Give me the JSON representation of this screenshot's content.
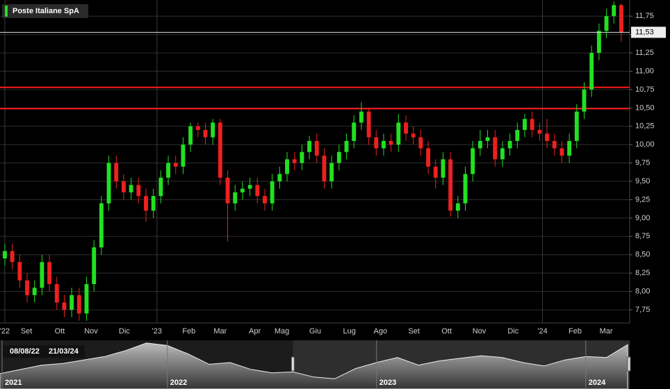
{
  "chart_data": [
    {
      "type": "candlestick",
      "title": "Poste Italiane SpA",
      "up_color": "#22e022",
      "down_color": "#ee2020",
      "grid": true,
      "x": [
        0,
        0.23,
        0.46,
        0.69,
        0.92,
        1.15,
        1.38,
        1.61,
        1.84,
        2.07,
        2.3,
        2.53,
        2.76,
        2.99,
        3.22,
        3.45,
        3.68,
        3.91,
        4.14,
        4.37,
        4.6,
        4.83,
        5.06,
        5.29,
        5.52,
        5.75,
        5.98,
        6.21,
        6.44,
        6.67,
        6.9,
        7.13,
        7.36,
        7.59,
        7.82,
        8.05,
        8.28,
        8.51,
        8.74,
        8.97,
        9.2,
        9.43,
        9.66,
        9.89,
        10.12,
        10.35,
        10.58,
        10.81,
        11.04,
        11.27,
        11.5,
        11.73,
        11.96,
        12.19,
        12.42,
        12.65,
        12.88,
        13.11,
        13.34,
        13.57,
        13.8,
        14.03,
        14.26,
        14.49,
        14.72,
        14.95,
        15.18,
        15.41,
        15.64,
        15.87,
        16.1,
        16.33,
        16.56,
        16.79,
        17.02,
        17.25,
        17.48,
        17.71,
        17.94,
        18.17,
        18.4,
        18.63,
        18.86,
        19.09
      ],
      "open": [
        8.45,
        8.55,
        8.4,
        8.15,
        7.95,
        8.05,
        8.4,
        8.1,
        7.85,
        7.75,
        7.95,
        7.7,
        8.1,
        8.6,
        9.2,
        9.75,
        9.5,
        9.35,
        9.45,
        9.3,
        9.1,
        9.3,
        9.55,
        9.75,
        9.7,
        10.0,
        10.25,
        10.2,
        10.1,
        10.3,
        9.55,
        9.2,
        9.35,
        9.4,
        9.45,
        9.3,
        9.2,
        9.5,
        9.6,
        9.8,
        9.75,
        9.9,
        10.05,
        9.85,
        9.5,
        9.75,
        9.9,
        10.05,
        10.3,
        10.45,
        10.1,
        9.95,
        10.05,
        10.0,
        10.3,
        10.15,
        10.1,
        9.95,
        9.7,
        9.55,
        9.8,
        9.1,
        9.2,
        9.6,
        9.95,
        10.05,
        10.1,
        9.8,
        9.95,
        10.05,
        10.2,
        10.35,
        10.2,
        10.15,
        10.05,
        9.95,
        9.85,
        10.05,
        10.45,
        10.75,
        11.25,
        11.55,
        11.75,
        11.9
      ],
      "high": [
        8.65,
        8.65,
        8.5,
        8.25,
        8.15,
        8.5,
        8.5,
        8.2,
        7.95,
        8.05,
        8.05,
        8.2,
        8.7,
        9.3,
        9.85,
        9.85,
        9.6,
        9.55,
        9.55,
        9.4,
        9.4,
        9.65,
        9.85,
        9.85,
        10.1,
        10.3,
        10.3,
        10.3,
        10.35,
        10.35,
        9.65,
        9.45,
        9.5,
        9.55,
        9.55,
        9.4,
        9.6,
        9.7,
        9.9,
        9.9,
        10.0,
        10.12,
        10.15,
        9.95,
        9.85,
        10.0,
        10.15,
        10.4,
        10.58,
        10.5,
        10.2,
        10.15,
        10.15,
        10.42,
        10.4,
        10.25,
        10.2,
        10.05,
        9.8,
        9.9,
        9.9,
        9.3,
        9.7,
        10.05,
        10.2,
        10.2,
        10.2,
        10.05,
        10.15,
        10.3,
        10.42,
        10.45,
        10.3,
        10.35,
        10.15,
        10.05,
        10.15,
        10.55,
        10.85,
        11.35,
        11.65,
        11.85,
        11.95,
        11.92
      ],
      "low": [
        8.35,
        8.3,
        8.05,
        7.85,
        7.85,
        7.95,
        8.0,
        7.75,
        7.65,
        7.65,
        7.6,
        7.6,
        8.0,
        8.5,
        9.1,
        9.4,
        9.25,
        9.25,
        9.2,
        8.95,
        9.0,
        9.2,
        9.45,
        9.6,
        9.6,
        9.9,
        10.1,
        10.0,
        10.0,
        9.45,
        8.68,
        9.1,
        9.25,
        9.3,
        9.2,
        9.1,
        9.1,
        9.4,
        9.5,
        9.65,
        9.65,
        9.8,
        9.75,
        9.4,
        9.4,
        9.65,
        9.8,
        9.95,
        10.2,
        10.0,
        9.85,
        9.85,
        9.9,
        9.9,
        10.05,
        10.0,
        9.85,
        9.6,
        9.4,
        9.45,
        9.02,
        9.0,
        9.1,
        9.5,
        9.85,
        9.95,
        9.7,
        9.7,
        9.85,
        9.95,
        10.1,
        10.1,
        10.05,
        9.95,
        9.85,
        9.75,
        9.75,
        9.95,
        10.35,
        10.65,
        11.15,
        11.45,
        11.65,
        11.4
      ],
      "close": [
        8.55,
        8.4,
        8.15,
        7.95,
        8.05,
        8.4,
        8.1,
        7.85,
        7.75,
        7.95,
        7.7,
        8.1,
        8.6,
        9.2,
        9.75,
        9.5,
        9.35,
        9.45,
        9.3,
        9.1,
        9.3,
        9.55,
        9.75,
        9.7,
        10.0,
        10.25,
        10.2,
        10.1,
        10.3,
        9.55,
        9.2,
        9.35,
        9.4,
        9.45,
        9.3,
        9.2,
        9.5,
        9.6,
        9.8,
        9.75,
        9.9,
        10.05,
        9.85,
        9.5,
        9.75,
        9.9,
        10.05,
        10.3,
        10.45,
        10.1,
        9.95,
        10.05,
        10.0,
        10.3,
        10.15,
        10.1,
        9.95,
        9.7,
        9.55,
        9.8,
        9.1,
        9.2,
        9.6,
        9.95,
        10.05,
        10.1,
        9.8,
        9.95,
        10.05,
        10.2,
        10.35,
        10.2,
        10.15,
        10.05,
        9.95,
        9.85,
        10.05,
        10.45,
        10.75,
        11.25,
        11.55,
        11.75,
        11.9,
        11.53
      ],
      "xlim": [
        -0.15,
        19.35
      ],
      "xticks": [
        {
          "value": 0,
          "label": "'22"
        },
        {
          "value": 0.67,
          "label": "Set"
        },
        {
          "value": 1.7,
          "label": "Ott"
        },
        {
          "value": 2.67,
          "label": "Nov"
        },
        {
          "value": 3.7,
          "label": "Dic"
        },
        {
          "value": 4.71,
          "label": "'23"
        },
        {
          "value": 5.7,
          "label": "Feb"
        },
        {
          "value": 6.67,
          "label": "Mar"
        },
        {
          "value": 7.74,
          "label": "Apr"
        },
        {
          "value": 8.58,
          "label": "Mag"
        },
        {
          "value": 9.61,
          "label": "Giu"
        },
        {
          "value": 10.67,
          "label": "Lug"
        },
        {
          "value": 11.63,
          "label": "Ago"
        },
        {
          "value": 12.67,
          "label": "Set"
        },
        {
          "value": 13.68,
          "label": "Ott"
        },
        {
          "value": 14.69,
          "label": "Nov"
        },
        {
          "value": 15.74,
          "label": "Dic"
        },
        {
          "value": 16.65,
          "label": "'24"
        },
        {
          "value": 17.66,
          "label": "Feb"
        },
        {
          "value": 18.62,
          "label": "Mar"
        }
      ],
      "ylim": [
        7.57,
        11.97
      ],
      "yticks": [
        {
          "value": 7.75,
          "label": "7,75"
        },
        {
          "value": 8,
          "label": "8,00"
        },
        {
          "value": 8.25,
          "label": "8,25"
        },
        {
          "value": 8.5,
          "label": "8,50"
        },
        {
          "value": 8.75,
          "label": "8,75"
        },
        {
          "value": 9,
          "label": "9,00"
        },
        {
          "value": 9.25,
          "label": "9,25"
        },
        {
          "value": 9.5,
          "label": "9,50"
        },
        {
          "value": 9.75,
          "label": "9,75"
        },
        {
          "value": 10,
          "label": "10,00"
        },
        {
          "value": 10.25,
          "label": "10,25"
        },
        {
          "value": 10.5,
          "label": "10,50"
        },
        {
          "value": 10.75,
          "label": "10,75"
        },
        {
          "value": 11,
          "label": "11,00"
        },
        {
          "value": 11.25,
          "label": "11,25"
        },
        {
          "value": 11.5,
          "label": "11,50"
        },
        {
          "value": 11.75,
          "label": "11,75"
        }
      ],
      "hlines": [
        {
          "value": 10.78,
          "color": "#ff1a1a"
        },
        {
          "value": 10.49,
          "color": "#ff1a1a"
        }
      ],
      "last": {
        "value": 11.53,
        "label": "11,53"
      }
    },
    {
      "type": "area",
      "color": "#bbbbbb",
      "x": [
        0.2,
        0.3,
        0.4,
        0.5,
        0.6,
        0.7,
        0.8,
        0.9,
        1.0,
        1.1,
        1.2,
        1.3,
        1.4,
        1.5,
        1.6,
        1.7,
        1.8,
        1.9,
        2.0,
        2.1,
        2.2,
        2.3,
        2.4,
        2.5,
        2.6,
        2.7,
        2.8,
        2.9,
        3.0,
        3.1,
        3.2
      ],
      "values": [
        8.3,
        8.8,
        9.3,
        9.5,
        9.9,
        10.3,
        11.0,
        11.9,
        11.6,
        10.6,
        9.4,
        9.6,
        8.8,
        8.4,
        8.5,
        7.9,
        7.7,
        8.9,
        9.6,
        10.2,
        9.3,
        9.8,
        10.1,
        10.4,
        10.2,
        9.6,
        9.2,
        9.9,
        10.3,
        10.2,
        11.7
      ],
      "xlim": [
        0.2,
        3.21
      ],
      "ylim": [
        6.5,
        12.2
      ],
      "xticks": [
        {
          "value": 0.21,
          "label": "2021"
        },
        {
          "value": 1,
          "label": "2022"
        },
        {
          "value": 2,
          "label": "2023"
        },
        {
          "value": 3,
          "label": "2024"
        }
      ],
      "window_start": 1.6,
      "range_labels": [
        "08/08/22",
        "21/03/24"
      ]
    }
  ]
}
